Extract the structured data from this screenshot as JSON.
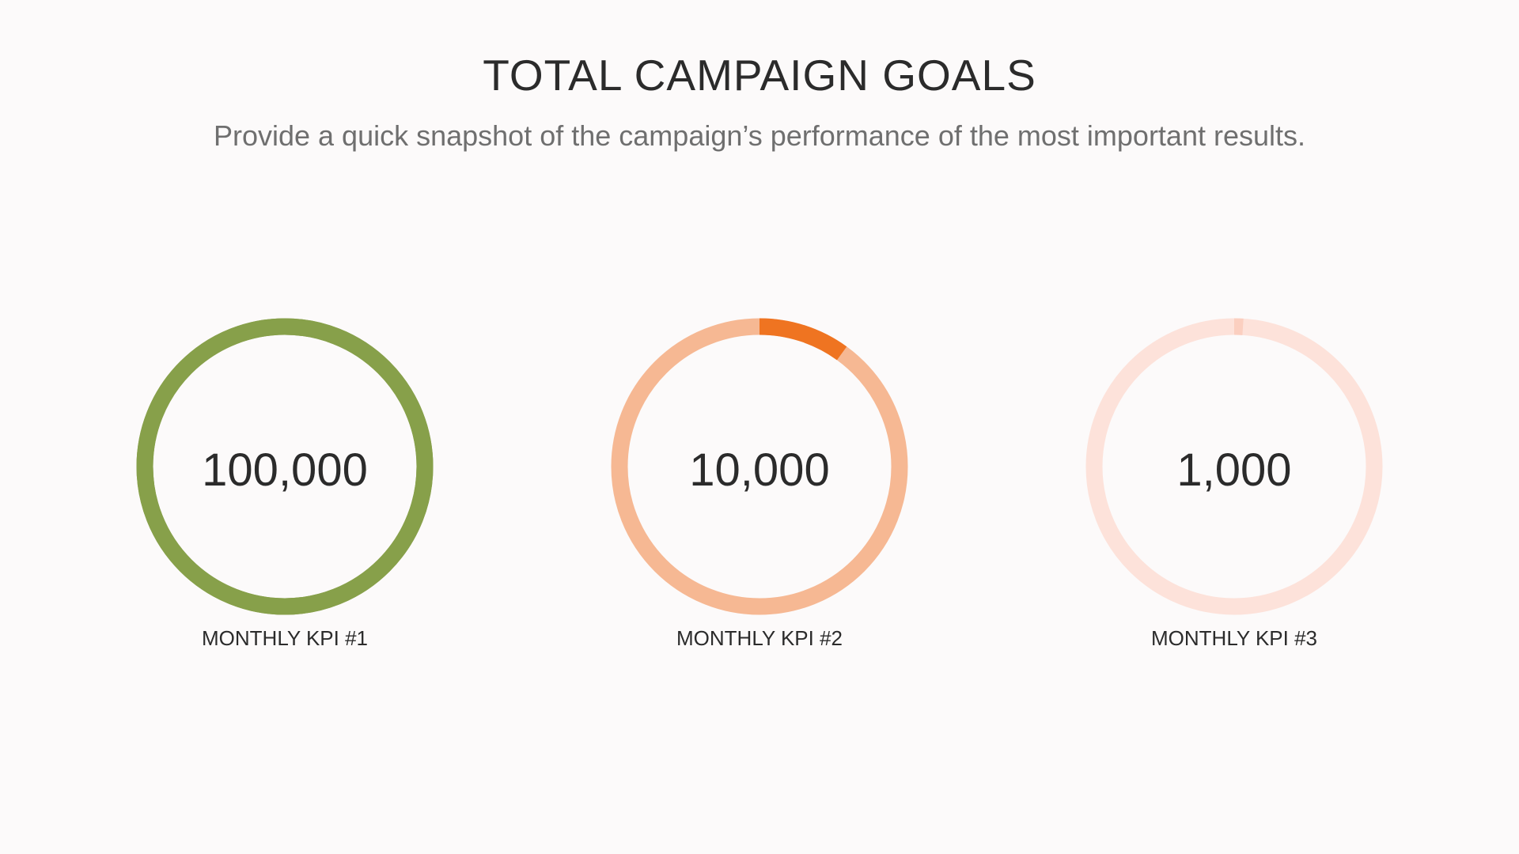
{
  "title": "TOTAL CAMPAIGN GOALS",
  "subtitle": "Provide a quick snapshot of the campaign’s performance of the most important results.",
  "chart_data": {
    "type": "pie",
    "kpis": [
      {
        "value_label": "100,000",
        "label": "MONTHLY KPI #1",
        "progress": 1.0,
        "progress_color": "#87a04a",
        "track_color": "#87a04a"
      },
      {
        "value_label": "10,000",
        "label": "MONTHLY KPI #2",
        "progress": 0.1,
        "progress_color": "#ef7421",
        "track_color": "#f6b893"
      },
      {
        "value_label": "1,000",
        "label": "MONTHLY KPI #3",
        "progress": 0.01,
        "progress_color": "#fbcfc0",
        "track_color": "#fde2da"
      }
    ]
  }
}
